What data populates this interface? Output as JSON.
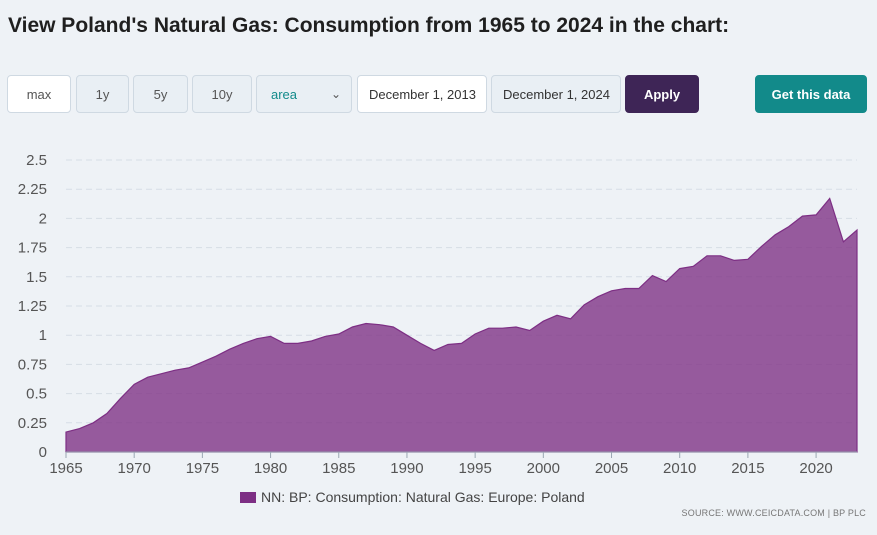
{
  "title": "View Poland's Natural Gas: Consumption from 1965 to 2024 in the chart:",
  "controls": {
    "max_label": "max",
    "y1_label": "1y",
    "y5_label": "5y",
    "y10_label": "10y",
    "chart_type": "area",
    "date_from": "December 1, 2013",
    "date_to": "December 1, 2024",
    "apply_label": "Apply",
    "get_data_label": "Get this data"
  },
  "colors": {
    "area_fill": "#7d2f84",
    "apply": "#3e2556",
    "accent": "#128a8a"
  },
  "source": "SOURCE: WWW.CEICDATA.COM | BP PLC",
  "chart_data": {
    "type": "area",
    "title": "",
    "xlabel": "",
    "ylabel": "",
    "x": [
      1965,
      1966,
      1967,
      1968,
      1969,
      1970,
      1971,
      1972,
      1973,
      1974,
      1975,
      1976,
      1977,
      1978,
      1979,
      1980,
      1981,
      1982,
      1983,
      1984,
      1985,
      1986,
      1987,
      1988,
      1989,
      1990,
      1991,
      1992,
      1993,
      1994,
      1995,
      1996,
      1997,
      1998,
      1999,
      2000,
      2001,
      2002,
      2003,
      2004,
      2005,
      2006,
      2007,
      2008,
      2009,
      2010,
      2011,
      2012,
      2013,
      2014,
      2015,
      2016,
      2017,
      2018,
      2019,
      2020,
      2021,
      2022,
      2023
    ],
    "series": [
      {
        "name": "NN: BP: Consumption: Natural Gas: Europe: Poland",
        "values": [
          0.17,
          0.2,
          0.25,
          0.33,
          0.46,
          0.58,
          0.64,
          0.67,
          0.7,
          0.72,
          0.77,
          0.82,
          0.88,
          0.93,
          0.97,
          0.99,
          0.93,
          0.93,
          0.95,
          0.99,
          1.01,
          1.07,
          1.1,
          1.09,
          1.07,
          1.0,
          0.93,
          0.87,
          0.92,
          0.93,
          1.01,
          1.06,
          1.06,
          1.07,
          1.04,
          1.12,
          1.17,
          1.14,
          1.26,
          1.33,
          1.38,
          1.4,
          1.4,
          1.51,
          1.46,
          1.57,
          1.59,
          1.68,
          1.68,
          1.64,
          1.65,
          1.76,
          1.86,
          1.93,
          2.02,
          2.03,
          2.17,
          1.8,
          1.9
        ]
      }
    ],
    "xticks": [
      "1965",
      "1970",
      "1975",
      "1980",
      "1985",
      "1990",
      "1995",
      "2000",
      "2005",
      "2010",
      "2015",
      "2020"
    ],
    "yticks": [
      "0",
      "0.25",
      "0.5",
      "0.75",
      "1",
      "1.25",
      "1.5",
      "1.75",
      "2",
      "2.25",
      "2.5"
    ],
    "xlim": [
      1965,
      2023
    ],
    "ylim": [
      0,
      2.5
    ],
    "grid": true,
    "legend_position": "bottom"
  }
}
